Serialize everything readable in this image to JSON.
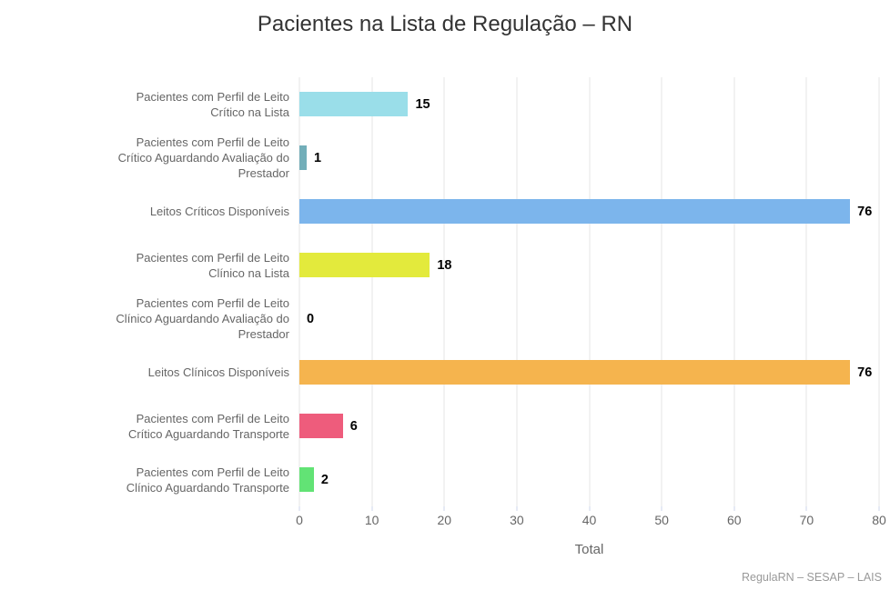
{
  "title": "Pacientes na Lista de Regulação – RN",
  "credit": "RegulaRN – SESAP – LAIS",
  "colors": {
    "background": "#ffffff",
    "title_text": "#333333",
    "axis_text": "#666666",
    "value_label_text": "#000000",
    "gridline": "#e6e6e6",
    "tick": "#ccd6eb",
    "credit_text": "#999999"
  },
  "chart_data": {
    "type": "bar",
    "orientation": "horizontal",
    "title": "Pacientes na Lista de Regulação – RN",
    "categories": [
      "Pacientes com Perfil de Leito\nCrítico na Lista",
      "Pacientes com Perfil de Leito\nCrítico Aguardando Avaliação do\nPrestador",
      "Leitos Críticos Disponíveis",
      "Pacientes com Perfil de Leito\nClínico na Lista",
      "Pacientes com Perfil de Leito\nClínico Aguardando Avaliação do\nPrestador",
      "Leitos Clínicos Disponíveis",
      "Pacientes com Perfil de Leito\nCrítico Aguardando Transporte",
      "Pacientes com Perfil de Leito\nClínico Aguardando Transporte"
    ],
    "values": [
      15,
      1,
      76,
      18,
      0,
      76,
      6,
      2
    ],
    "bar_colors": [
      "#9adee9",
      "#72aeb9",
      "#7cb5ec",
      "#e3ea3c",
      null,
      "#f5b44e",
      "#ee5c7c",
      "#62e375"
    ],
    "xlabel": "Total",
    "ylabel": "",
    "xlim": [
      0,
      80
    ],
    "xticks": [
      0,
      10,
      20,
      30,
      40,
      50,
      60,
      70,
      80
    ],
    "grid": true,
    "legend": "none"
  }
}
